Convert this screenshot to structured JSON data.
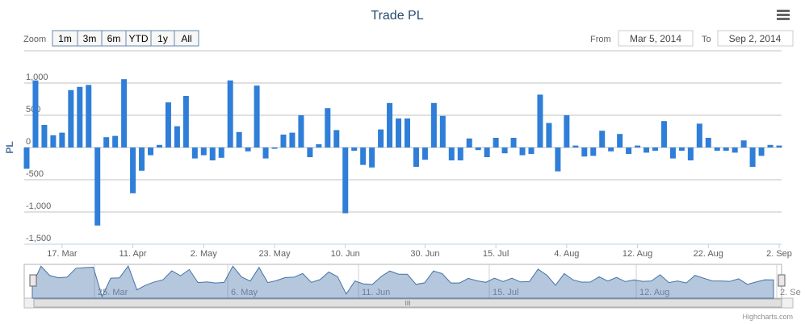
{
  "chart_data": {
    "type": "bar",
    "title": "Trade PL",
    "y_axis_label": "PL",
    "color": "#2f7ed8",
    "categories": [
      null,
      null,
      null,
      null,
      "17. Mar",
      null,
      null,
      null,
      null,
      null,
      null,
      null,
      "11. Apr",
      null,
      null,
      null,
      null,
      null,
      null,
      null,
      "2. May",
      null,
      null,
      null,
      null,
      null,
      null,
      null,
      "23. May",
      null,
      null,
      null,
      null,
      null,
      null,
      null,
      "10. Jun",
      null,
      null,
      null,
      null,
      null,
      null,
      null,
      null,
      "30. Jun",
      null,
      null,
      null,
      null,
      null,
      null,
      null,
      "15. Jul",
      null,
      null,
      null,
      null,
      null,
      null,
      null,
      "4. Aug",
      null,
      null,
      null,
      null,
      null,
      null,
      null,
      "12. Aug",
      null,
      null,
      null,
      null,
      null,
      null,
      null,
      "22. Aug",
      null,
      null,
      null,
      null,
      null,
      null,
      null,
      "2. Sep"
    ],
    "values": [
      -330,
      1040,
      350,
      190,
      230,
      890,
      940,
      970,
      -1210,
      160,
      180,
      1060,
      -710,
      -360,
      -120,
      40,
      700,
      330,
      800,
      -170,
      -120,
      -200,
      -160,
      1040,
      240,
      -60,
      960,
      -170,
      -20,
      200,
      230,
      500,
      -150,
      50,
      610,
      270,
      -1020,
      -50,
      -270,
      -310,
      280,
      690,
      450,
      450,
      -300,
      -190,
      690,
      490,
      -200,
      -200,
      140,
      -40,
      -150,
      150,
      -90,
      150,
      -120,
      -100,
      820,
      380,
      -370,
      500,
      30,
      -140,
      -130,
      260,
      -60,
      210,
      -100,
      30,
      -80,
      -50,
      410,
      -170,
      -50,
      -200,
      370,
      150,
      -50,
      -50,
      -80,
      110,
      -300,
      -130,
      40,
      30
    ],
    "ylim": [
      -1500,
      1200
    ],
    "yticks": [
      {
        "value": 1000,
        "label": "1,000"
      },
      500,
      0,
      -500,
      {
        "value": -1000,
        "label": "-1,000"
      },
      {
        "value": -1500,
        "label": "-1,500"
      }
    ],
    "grid": true,
    "navigator_labels": [
      "25. Mar",
      "6. May",
      "11. Jun",
      "15. Jul",
      "12. Aug",
      "2. Se"
    ]
  },
  "ui": {
    "zoom_label": "Zoom",
    "zoom_buttons": [
      "1m",
      "3m",
      "6m",
      "YTD",
      "1y",
      "All"
    ],
    "from_label": "From",
    "from_value": "Mar 5, 2014",
    "to_label": "To",
    "to_value": "Sep 2, 2014",
    "credits": "Highcharts.com"
  }
}
